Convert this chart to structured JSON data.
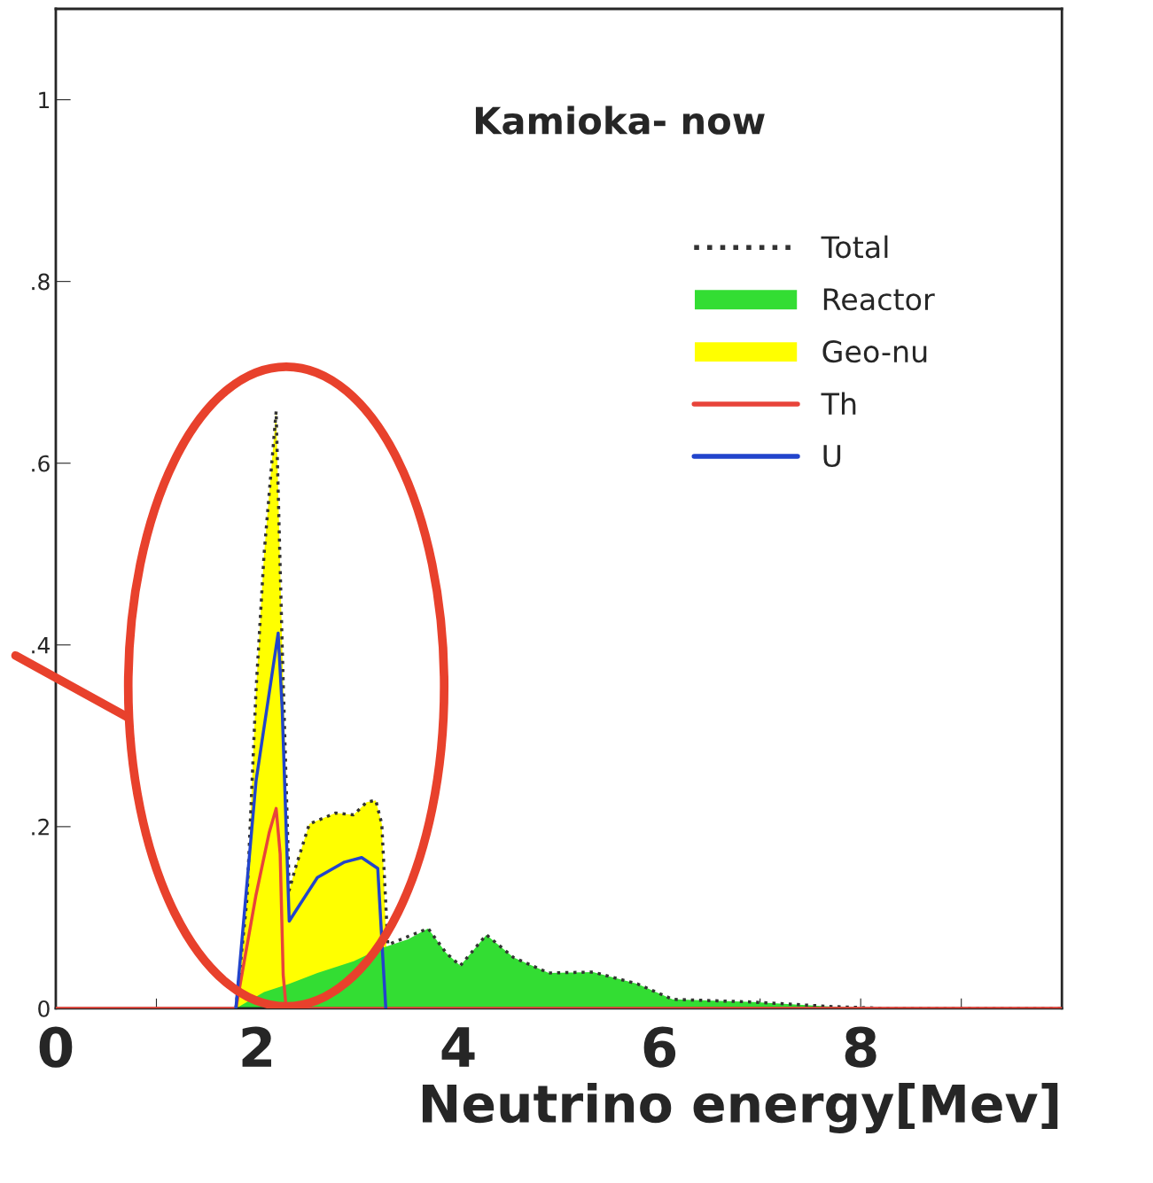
{
  "chart_data": {
    "type": "line",
    "title": "Kamioka- now",
    "xlabel": "Neutrino energy[Mev]",
    "xlim": [
      0,
      10
    ],
    "ylim": [
      0,
      1.1
    ],
    "xticks": [
      0,
      {
        "value": 1,
        "label": null
      },
      2,
      {
        "value": 3,
        "label": null
      },
      4,
      {
        "value": 5,
        "label": null
      },
      6,
      {
        "value": 7,
        "label": null
      },
      8,
      {
        "value": 9,
        "label": null
      }
    ],
    "yticks": [
      {
        "value": 0,
        "label": "0"
      },
      {
        "value": 0.2,
        "label": ".2"
      },
      {
        "value": 0.4,
        "label": ".4"
      },
      {
        "value": 0.6,
        "label": ".6"
      },
      {
        "value": 0.8,
        "label": ".8"
      },
      {
        "value": 1,
        "label": "1"
      }
    ],
    "grid": false,
    "legend": "top right",
    "series": [
      {
        "name": "Total",
        "line_style": "dotted",
        "color": "#333333",
        "x": [
          1.79,
          1.9,
          1.99,
          2.07,
          2.19,
          2.25,
          2.32,
          2.38,
          2.52,
          2.78,
          2.96,
          3.09,
          3.18,
          3.24,
          3.3,
          3.7,
          3.88,
          4.02,
          4.28,
          4.55,
          4.9,
          5.34,
          5.78,
          6.13,
          6.93,
          7.72,
          8.25,
          10
        ],
        "values": [
          0,
          0.12,
          0.35,
          0.5,
          0.657,
          0.4,
          0.13,
          0.154,
          0.203,
          0.215,
          0.213,
          0.227,
          0.229,
          0.203,
          0.07,
          0.088,
          0.061,
          0.047,
          0.081,
          0.056,
          0.039,
          0.04,
          0.027,
          0.01,
          0.007,
          0.002,
          0,
          0
        ]
      },
      {
        "name": "Reactor",
        "type": "area",
        "color": "#33dd33",
        "x": [
          1.79,
          2.07,
          2.32,
          2.6,
          2.96,
          3.23,
          3.5,
          3.7,
          3.88,
          4.02,
          4.28,
          4.55,
          4.9,
          5.34,
          5.78,
          6.13,
          6.93,
          7.72,
          8.25
        ],
        "values": [
          0,
          0.018,
          0.027,
          0.039,
          0.052,
          0.066,
          0.076,
          0.088,
          0.061,
          0.047,
          0.081,
          0.056,
          0.039,
          0.04,
          0.027,
          0.01,
          0.007,
          0.002,
          0
        ]
      },
      {
        "name": "Geo-nu",
        "type": "area",
        "color": "#ffff00",
        "x": [
          1.79,
          1.9,
          1.99,
          2.07,
          2.19,
          2.25,
          2.32,
          2.38,
          2.52,
          2.78,
          2.96,
          3.09,
          3.18,
          3.24,
          3.31
        ],
        "values": [
          0,
          0.12,
          0.35,
          0.5,
          0.657,
          0.4,
          0.13,
          0.154,
          0.203,
          0.215,
          0.213,
          0.227,
          0.229,
          0.203,
          0
        ]
      },
      {
        "name": "Th",
        "line_style": "solid",
        "color": "#e8443a",
        "x": [
          0,
          1.79,
          1.99,
          2.12,
          2.19,
          2.23,
          2.26,
          2.29,
          10
        ],
        "values": [
          0,
          0,
          0.125,
          0.193,
          0.22,
          0.17,
          0.037,
          0,
          0
        ]
      },
      {
        "name": "U",
        "line_style": "solid",
        "color": "#2244cc",
        "x": [
          1.79,
          1.99,
          2.21,
          2.25,
          2.32,
          2.43,
          2.6,
          2.87,
          3.04,
          3.2,
          3.26,
          3.28
        ],
        "values": [
          0,
          0.25,
          0.413,
          0.33,
          0.096,
          0.115,
          0.144,
          0.161,
          0.166,
          0.154,
          0.037,
          0
        ]
      }
    ]
  }
}
